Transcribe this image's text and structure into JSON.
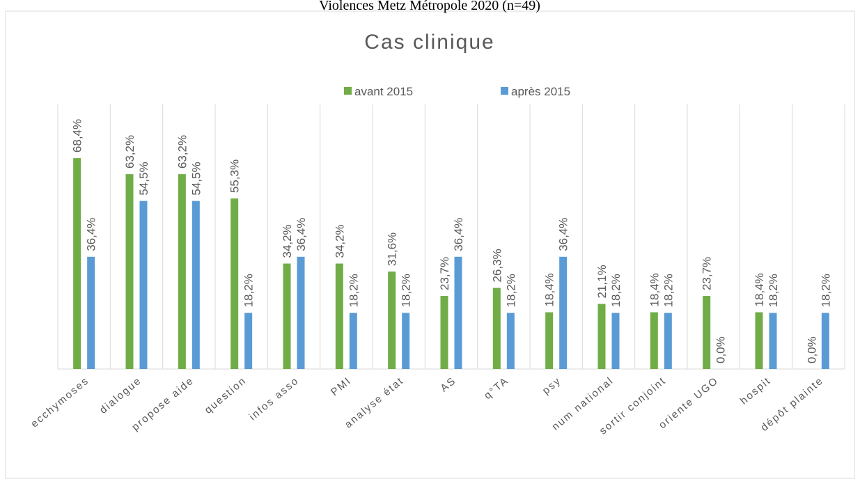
{
  "page_title": "Violences Metz Métropole 2020 (n=49)",
  "chart_data": {
    "type": "bar",
    "title": "Cas clinique",
    "categories": [
      "ecchymoses",
      "dialogue",
      "propose aide",
      "question",
      "infos asso",
      "PMI",
      "analyse état",
      "AS",
      "q°TA",
      "psy",
      "num national",
      "sortir conjoint",
      "oriente UGO",
      "hospit",
      "dépôt plainte"
    ],
    "series": [
      {
        "name": "avant 2015",
        "color": "#70ad47",
        "values": [
          68.4,
          63.2,
          63.2,
          55.3,
          34.2,
          34.2,
          31.6,
          23.7,
          26.3,
          18.4,
          21.1,
          18.4,
          23.7,
          18.4,
          0.0
        ],
        "value_labels": [
          "68,4%",
          "63,2%",
          "63,2%",
          "55,3%",
          "34,2%",
          "34,2%",
          "31,6%",
          "23,7%",
          "26,3%",
          "18,4%",
          "21,1%",
          "18,4%",
          "23,7%",
          "18,4%",
          "0,0%"
        ]
      },
      {
        "name": "après 2015",
        "color": "#5b9bd5",
        "values": [
          36.4,
          54.5,
          54.5,
          18.2,
          36.4,
          18.2,
          18.2,
          36.4,
          18.2,
          36.4,
          18.2,
          18.2,
          0.0,
          18.2,
          18.2
        ],
        "value_labels": [
          "36,4%",
          "54,5%",
          "54,5%",
          "18,2%",
          "36,4%",
          "18,2%",
          "18,2%",
          "36,4%",
          "18,2%",
          "36,4%",
          "18,2%",
          "18,2%",
          "0,0%",
          "18,2%",
          "18,2%"
        ]
      }
    ],
    "ylim": [
      0,
      70
    ],
    "legend": "top",
    "grid": true
  }
}
